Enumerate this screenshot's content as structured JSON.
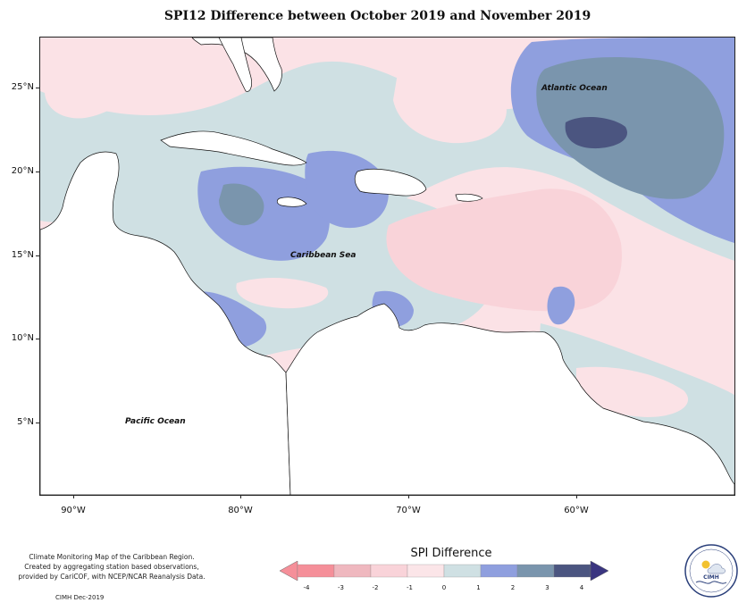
{
  "title": "SPI12 Difference between October 2019 and November 2019",
  "map": {
    "y_ticks": [
      "25°N",
      "20°N",
      "15°N",
      "10°N",
      "5°N"
    ],
    "x_ticks": [
      "90°W",
      "80°W",
      "70°W",
      "60°W"
    ],
    "labels": {
      "atlantic": "Atlantic Ocean",
      "caribbean": "Caribbean Sea",
      "pacific": "Pacific Ocean"
    },
    "colors": {
      "land": "#ffffff",
      "coast": "#111111"
    }
  },
  "credit": {
    "line1": "Climate Monitoring Map of the Caribbean Region.",
    "line2": "Created by aggregating station based observations,",
    "line3": "provided by CariCOF, with NCEP/NCAR Reanalysis Data.",
    "issuer": "CIMH Dec-2019"
  },
  "legend": {
    "title": "SPI Difference",
    "ticks": [
      "-4",
      "-3",
      "-2",
      "-1",
      "0",
      "1",
      "2",
      "3",
      "4"
    ],
    "colors": [
      "#f58f99",
      "#efb8bf",
      "#f9d3d9",
      "#fbe5e8",
      "#cfe0e3",
      "#8f9fde",
      "#7a95ad",
      "#4b5580",
      "#3a3580"
    ]
  },
  "logo": {
    "text": "CIMH"
  }
}
